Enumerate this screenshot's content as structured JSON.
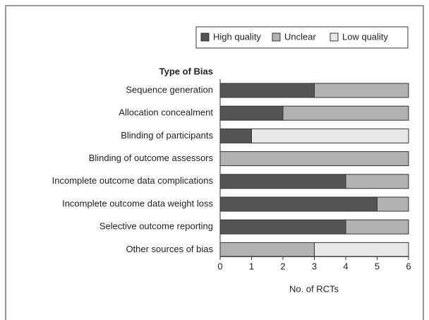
{
  "chart_data": {
    "type": "stacked-bar-horizontal",
    "y_label": "Type of Bias",
    "x_label": "No. of RCTs",
    "categories": [
      "Sequence generation",
      "Allocation concealment",
      "Blinding of participants",
      "Blinding of outcome assessors",
      "Incomplete outcome data complications",
      "Incomplete outcome data weight loss",
      "Selective outcome reporting",
      "Other sources of bias"
    ],
    "series": [
      {
        "name": "High quality",
        "color": "#555555",
        "values": [
          3,
          2,
          1,
          0,
          4,
          5,
          4,
          0
        ]
      },
      {
        "name": "Unclear",
        "color": "#b2b2b2",
        "values": [
          3,
          4,
          0,
          6,
          2,
          1,
          2,
          3
        ]
      },
      {
        "name": "Low quality",
        "color": "#e8e8e8",
        "values": [
          0,
          0,
          5,
          0,
          0,
          0,
          0,
          3
        ]
      }
    ],
    "xlim": [
      0,
      6
    ],
    "xticks": [
      0,
      1,
      2,
      3,
      4,
      5,
      6
    ],
    "grid": false,
    "legend": "top-right"
  }
}
